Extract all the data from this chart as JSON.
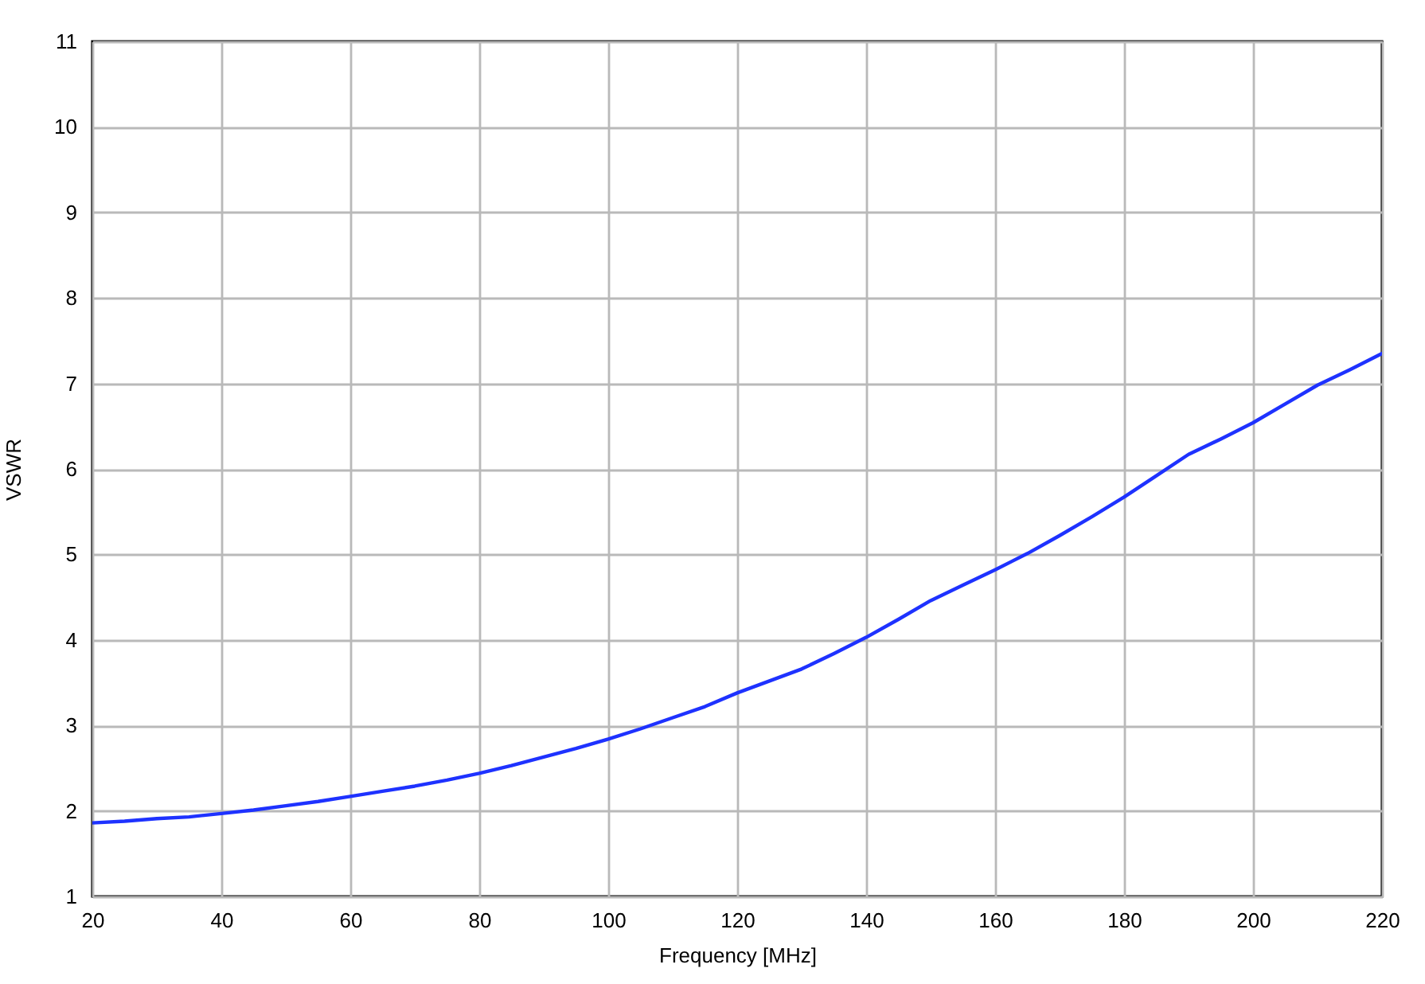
{
  "chart_data": {
    "type": "line",
    "xlabel": "Frequency [MHz]",
    "ylabel": "VSWR",
    "x": [
      20,
      25,
      30,
      35,
      40,
      45,
      50,
      55,
      60,
      65,
      70,
      75,
      80,
      85,
      90,
      95,
      100,
      105,
      110,
      115,
      120,
      125,
      130,
      135,
      140,
      145,
      150,
      155,
      160,
      165,
      170,
      175,
      180,
      185,
      190,
      195,
      200,
      205,
      210,
      215,
      220
    ],
    "series": [
      {
        "color": "#1e32ff",
        "values": [
          1.86,
          1.88,
          1.91,
          1.93,
          1.97,
          2.01,
          2.06,
          2.11,
          2.17,
          2.23,
          2.29,
          2.36,
          2.44,
          2.53,
          2.63,
          2.73,
          2.84,
          2.96,
          3.09,
          3.22,
          3.38,
          3.52,
          3.66,
          3.84,
          4.03,
          4.24,
          4.46,
          4.64,
          4.82,
          5.01,
          5.22,
          5.44,
          5.67,
          5.92,
          6.17,
          6.35,
          6.54,
          6.76,
          6.98,
          7.16,
          7.35
        ]
      }
    ],
    "xlim": [
      20,
      220
    ],
    "ylim": [
      1,
      11
    ],
    "xticks": [
      20,
      40,
      60,
      80,
      100,
      120,
      140,
      160,
      180,
      200,
      220
    ],
    "yticks": [
      1,
      2,
      3,
      4,
      5,
      6,
      7,
      8,
      9,
      10,
      11
    ],
    "grid": true
  }
}
